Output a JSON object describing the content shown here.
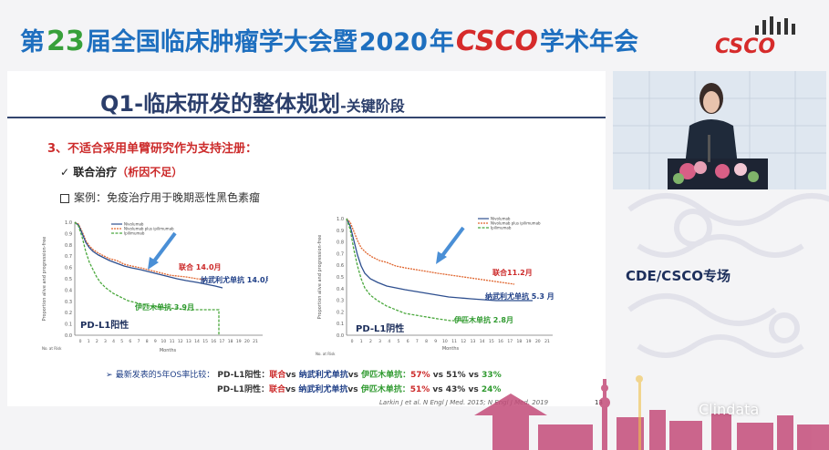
{
  "banner": {
    "p1": "第",
    "p2": "23",
    "p3": "届全国临床肿瘤学大会暨",
    "p4": "2020",
    "p5": "年",
    "p6": "CSCO",
    "p7": "学术年会"
  },
  "logo_text": "CSCO",
  "slide": {
    "title_main": "Q1-临床研发的整体规划",
    "title_sub": "-关键阶段",
    "point": "3、不适合采用单臂研究作为支持注册：",
    "check_label": "联合治疗",
    "check_note": "（析因不足）",
    "case_text": "案例：免疫治疗用于晚期恶性黑色素瘤"
  },
  "left_plot": {
    "ylabel": "Proportion alive and progression-free",
    "xlabel": "Months",
    "risk_label": "No. at Risk",
    "yticks": [
      "1.0",
      "0.9",
      "0.8",
      "0.7",
      "0.6",
      "0.5",
      "0.4",
      "0.3",
      "0.2",
      "0.1",
      "0.0"
    ],
    "xticks": [
      "0",
      "1",
      "2",
      "3",
      "4",
      "5",
      "6",
      "7",
      "8",
      "9",
      "10",
      "11",
      "12",
      "13",
      "14",
      "15",
      "16",
      "17",
      "18",
      "19",
      "20",
      "21"
    ],
    "legend": [
      "Nivolumab",
      "Nivolumab plus ipilimumab",
      "Ipilimumab"
    ],
    "ann_combo": "联合 14.0月",
    "ann_nivo": "纳武利尤单抗 14.0月",
    "ann_ipi": "伊匹木单抗 3.9月",
    "group_label": "PD-L1阳性"
  },
  "right_plot": {
    "ylabel": "Proportion alive and progression-free",
    "xlabel": "Months",
    "risk_label": "No. at Risk",
    "yticks": [
      "1.0",
      "0.9",
      "0.8",
      "0.7",
      "0.6",
      "0.5",
      "0.4",
      "0.3",
      "0.2",
      "0.1",
      "0.0"
    ],
    "xticks": [
      "0",
      "1",
      "2",
      "3",
      "4",
      "5",
      "6",
      "7",
      "8",
      "9",
      "10",
      "11",
      "12",
      "13",
      "14",
      "15",
      "16",
      "17",
      "18",
      "19",
      "20",
      "21"
    ],
    "legend": [
      "Nivolumab",
      "Nivolumab plus ipilimumab",
      "Ipilimumab"
    ],
    "ann_combo": "联合11.2月",
    "ann_nivo": "纳武利尤单抗 5.3 月",
    "ann_ipi": "伊匹木单抗 2.8月",
    "group_label": "PD-L1阴性"
  },
  "os": {
    "bullet": "➢",
    "lead": "最新发表的5年OS率比较：",
    "row1_group": "PD-L1阳性：",
    "row2_group": "PD-L1阴性：",
    "combo": "联合",
    "vs1": "vs ",
    "nivo": "纳武利尤单抗",
    "vs2": "vs ",
    "ipi": "伊匹木单抗：",
    "row1_r": "57%",
    "row1_mid": " vs 51% vs ",
    "row1_g": "33%",
    "row2_r": "51%",
    "row2_mid": " vs 43% vs ",
    "row2_g": "24%"
  },
  "reference": "Larkin J et al. N Engl J Med. 2015; N Engl J Med. 2019",
  "page_number": "13",
  "side_caption": "CDE/CSCO专场",
  "watermark": "Clindata",
  "colors": {
    "nivo": "#2e4f8f",
    "combo": "#e0662f",
    "ipi": "#4aa83d",
    "arrow": "#4a8fd6",
    "title": "#2b3e6b",
    "accent_red": "#cc2a2a"
  }
}
